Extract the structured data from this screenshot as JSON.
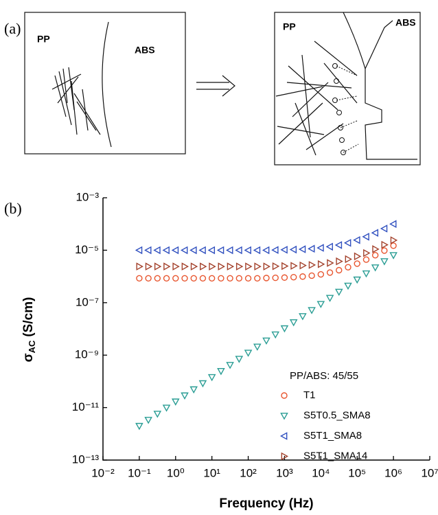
{
  "panels": {
    "a": {
      "label": "(a)",
      "left_box": {
        "left": "PP",
        "right": "ABS"
      },
      "right_box": {
        "left": "PP",
        "right": "ABS"
      }
    },
    "b": {
      "label": "(b)"
    }
  },
  "chart_data": {
    "type": "scatter",
    "xlabel": "Frequency (Hz)",
    "ylabel": {
      "symbol": "σ",
      "subscript": "AC",
      "unit": "(S/cm)"
    },
    "legend_title": "PP/ABS: 45/55",
    "legend": "bottom-right",
    "xscale": "log",
    "yscale": "log",
    "grid": false,
    "xlim": [
      0.01,
      10000000
    ],
    "xticks": [
      {
        "value": 0.01,
        "label": "10⁻²"
      },
      {
        "value": 0.1,
        "label": "10⁻¹"
      },
      {
        "value": 1,
        "label": "10⁰"
      },
      {
        "value": 10,
        "label": "10¹"
      },
      {
        "value": 100,
        "label": "10²"
      },
      {
        "value": 1000,
        "label": "10³"
      },
      {
        "value": 10000,
        "label": "10⁴"
      },
      {
        "value": 100000,
        "label": "10⁵"
      },
      {
        "value": 1000000,
        "label": "10⁶"
      },
      {
        "value": 10000000,
        "label": "10⁷"
      }
    ],
    "ylim": [
      1e-13,
      0.001
    ],
    "yticks": [
      {
        "value": 1e-13,
        "label": "10⁻¹³"
      },
      {
        "value": 1e-11,
        "label": "10⁻¹¹"
      },
      {
        "value": 1e-09,
        "label": "10⁻⁹"
      },
      {
        "value": 1e-07,
        "label": "10⁻⁷"
      },
      {
        "value": 1e-05,
        "label": "10⁻⁵"
      },
      {
        "value": 0.001,
        "label": "10⁻³"
      }
    ],
    "x": [
      0.1,
      0.178,
      0.316,
      0.562,
      1,
      1.78,
      3.16,
      5.62,
      10,
      17.8,
      31.6,
      56.2,
      100,
      178,
      316,
      562,
      1000,
      1780,
      3160,
      5620,
      10000,
      17800,
      31600,
      56200,
      100000,
      178000,
      316000,
      562000,
      1000000
    ],
    "series": [
      {
        "name": "T1",
        "color": "#e8552e",
        "marker": "circle",
        "values": [
          8.5e-07,
          8.5e-07,
          8.5e-07,
          8.5e-07,
          8.5e-07,
          8.5e-07,
          8.5e-07,
          8.5e-07,
          8.5e-07,
          8.5e-07,
          8.5e-07,
          8.5e-07,
          8.5e-07,
          8.5e-07,
          8.72e-07,
          8.86e-07,
          9.06e-07,
          9.39e-07,
          9.91e-07,
          1.07e-06,
          1.2e-06,
          1.41e-06,
          1.73e-06,
          2.25e-06,
          3.08e-06,
          4.38e-06,
          6.44e-06,
          9.69e-06,
          1.49e-05
        ]
      },
      {
        "name": "S5T0.5_SMA8",
        "color": "#2a9d94",
        "marker": "triangle-down",
        "values": [
          2e-12,
          3.41e-12,
          5.82e-12,
          9.94e-12,
          1.7e-11,
          2.9e-11,
          4.95e-11,
          8.46e-11,
          1.45e-10,
          2.47e-10,
          4.22e-10,
          7.2e-10,
          1.23e-09,
          2.1e-09,
          3.59e-09,
          6.13e-09,
          1.05e-08,
          1.79e-08,
          3.05e-08,
          5.22e-08,
          8.91e-08,
          1.52e-07,
          2.6e-07,
          4.44e-07,
          7.59e-07,
          1.3e-06,
          2.21e-06,
          3.78e-06,
          6.46e-06
        ]
      },
      {
        "name": "S5T1_SMA8",
        "color": "#2f4fbf",
        "marker": "triangle-left",
        "values": [
          1e-05,
          1e-05,
          1e-05,
          1e-05,
          1e-05,
          1e-05,
          1e-05,
          1e-05,
          1e-05,
          1e-05,
          1e-05,
          1e-05,
          1e-05,
          1e-05,
          1e-05,
          1.02e-05,
          1.04e-05,
          1.06e-05,
          1.09e-05,
          1.14e-05,
          1.23e-05,
          1.36e-05,
          1.57e-05,
          1.9e-05,
          2.43e-05,
          3.26e-05,
          4.59e-05,
          6.69e-05,
          0.0001
        ]
      },
      {
        "name": "S5T1_SMA14",
        "color": "#a3422c",
        "marker": "triangle-right",
        "values": [
          2.4e-06,
          2.4e-06,
          2.4e-06,
          2.4e-06,
          2.4e-06,
          2.4e-06,
          2.4e-06,
          2.4e-06,
          2.4e-06,
          2.4e-06,
          2.4e-06,
          2.4e-06,
          2.4e-06,
          2.4e-06,
          2.4e-06,
          2.45e-06,
          2.49e-06,
          2.54e-06,
          2.62e-06,
          2.74e-06,
          2.94e-06,
          3.26e-06,
          3.77e-06,
          4.56e-06,
          5.83e-06,
          7.82e-06,
          1.1e-05,
          1.61e-05,
          2.4e-05
        ]
      }
    ]
  }
}
